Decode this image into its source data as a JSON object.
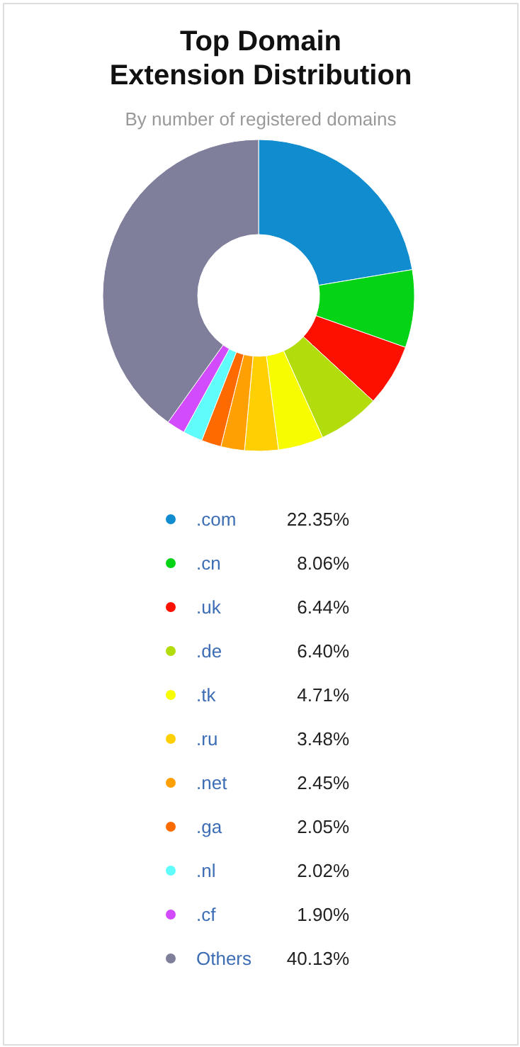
{
  "chart_data": {
    "type": "donut",
    "title": "Top Domain\nExtension Distribution",
    "subtitle": "By number of registered domains",
    "categories": [
      ".com",
      ".cn",
      ".uk",
      ".de",
      ".tk",
      ".ru",
      ".net",
      ".ga",
      ".nl",
      ".cf",
      "Others"
    ],
    "values": [
      22.35,
      8.06,
      6.44,
      6.4,
      4.71,
      3.48,
      2.45,
      2.05,
      2.02,
      1.9,
      40.13
    ],
    "value_labels": [
      "22.35%",
      "8.06%",
      "6.44%",
      "6.40%",
      "4.71%",
      "3.48%",
      "2.45%",
      "2.05%",
      "2.02%",
      "1.90%",
      "40.13%"
    ],
    "colors": [
      "#108ccf",
      "#04d415",
      "#fe1000",
      "#b2dc0b",
      "#f8fc00",
      "#fecf02",
      "#fe9f03",
      "#fe6a00",
      "#5ffcfb",
      "#d24bfc",
      "#7f7f9b"
    ],
    "legend": "bottom"
  }
}
